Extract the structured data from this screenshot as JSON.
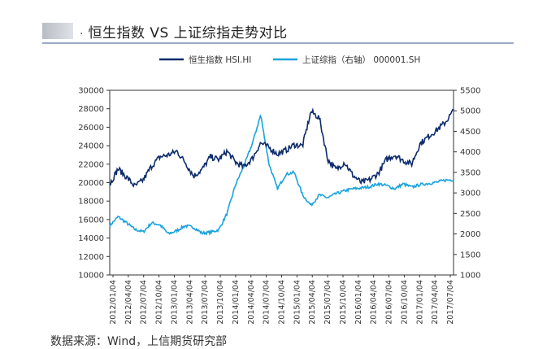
{
  "title": "恒生指数 VS 上证综指走势对比",
  "title_prefix": ".",
  "footer": "数据来源：Wind，上信期货研究部",
  "colors": {
    "hsi": "#0d2b6b",
    "sh": "#1aa3dc",
    "axis": "#333333",
    "title_rule": "#9aa9c2"
  },
  "chart_data": {
    "type": "line",
    "legend_placement": "top-center",
    "grid": false,
    "x_labels": [
      "2012/01/04",
      "2012/04/04",
      "2012/07/04",
      "2012/10/04",
      "2013/01/04",
      "2013/04/04",
      "2013/07/04",
      "2013/10/04",
      "2014/01/04",
      "2014/04/04",
      "2014/07/04",
      "2014/10/04",
      "2015/01/04",
      "2015/04/04",
      "2015/07/04",
      "2015/10/04",
      "2016/01/04",
      "2016/04/04",
      "2016/07/04",
      "2016/10/04",
      "2017/01/04",
      "2017/04/04",
      "2017/07/04"
    ],
    "y_left": {
      "min": 10000,
      "max": 30000,
      "ticks": [
        10000,
        12000,
        14000,
        16000,
        18000,
        20000,
        22000,
        24000,
        26000,
        28000,
        30000
      ]
    },
    "y_right": {
      "min": 1000,
      "max": 5500,
      "ticks": [
        1000,
        1500,
        2000,
        2500,
        3000,
        3500,
        4000,
        4500,
        5000,
        5500
      ]
    },
    "series": [
      {
        "name": "恒生指数 HSI.HI",
        "axis": "left",
        "values": [
          19800,
          21500,
          20600,
          19600,
          20300,
          21800,
          22800,
          23000,
          23400,
          22200,
          20700,
          21400,
          22800,
          22500,
          23400,
          22200,
          21700,
          22600,
          24300,
          23800,
          23100,
          23500,
          24100,
          24000,
          27700,
          27000,
          22500,
          21400,
          22200,
          20800,
          20000,
          20300,
          21000,
          22500,
          23000,
          22400,
          22000,
          24200,
          25000,
          25700,
          26500,
          27800
        ]
      },
      {
        "name": "上证综指（右轴） 000001.SH",
        "axis": "right",
        "values": [
          2200,
          2420,
          2270,
          2110,
          2050,
          2270,
          2220,
          2000,
          2080,
          2200,
          2160,
          2020,
          2040,
          2100,
          2500,
          3200,
          3650,
          4200,
          4900,
          3700,
          3100,
          3450,
          3500,
          2950,
          2700,
          2950,
          2880,
          2980,
          3050,
          3100,
          3120,
          3150,
          3220,
          3180,
          3100,
          3220,
          3140,
          3200,
          3230,
          3260,
          3310,
          3320
        ]
      }
    ]
  }
}
